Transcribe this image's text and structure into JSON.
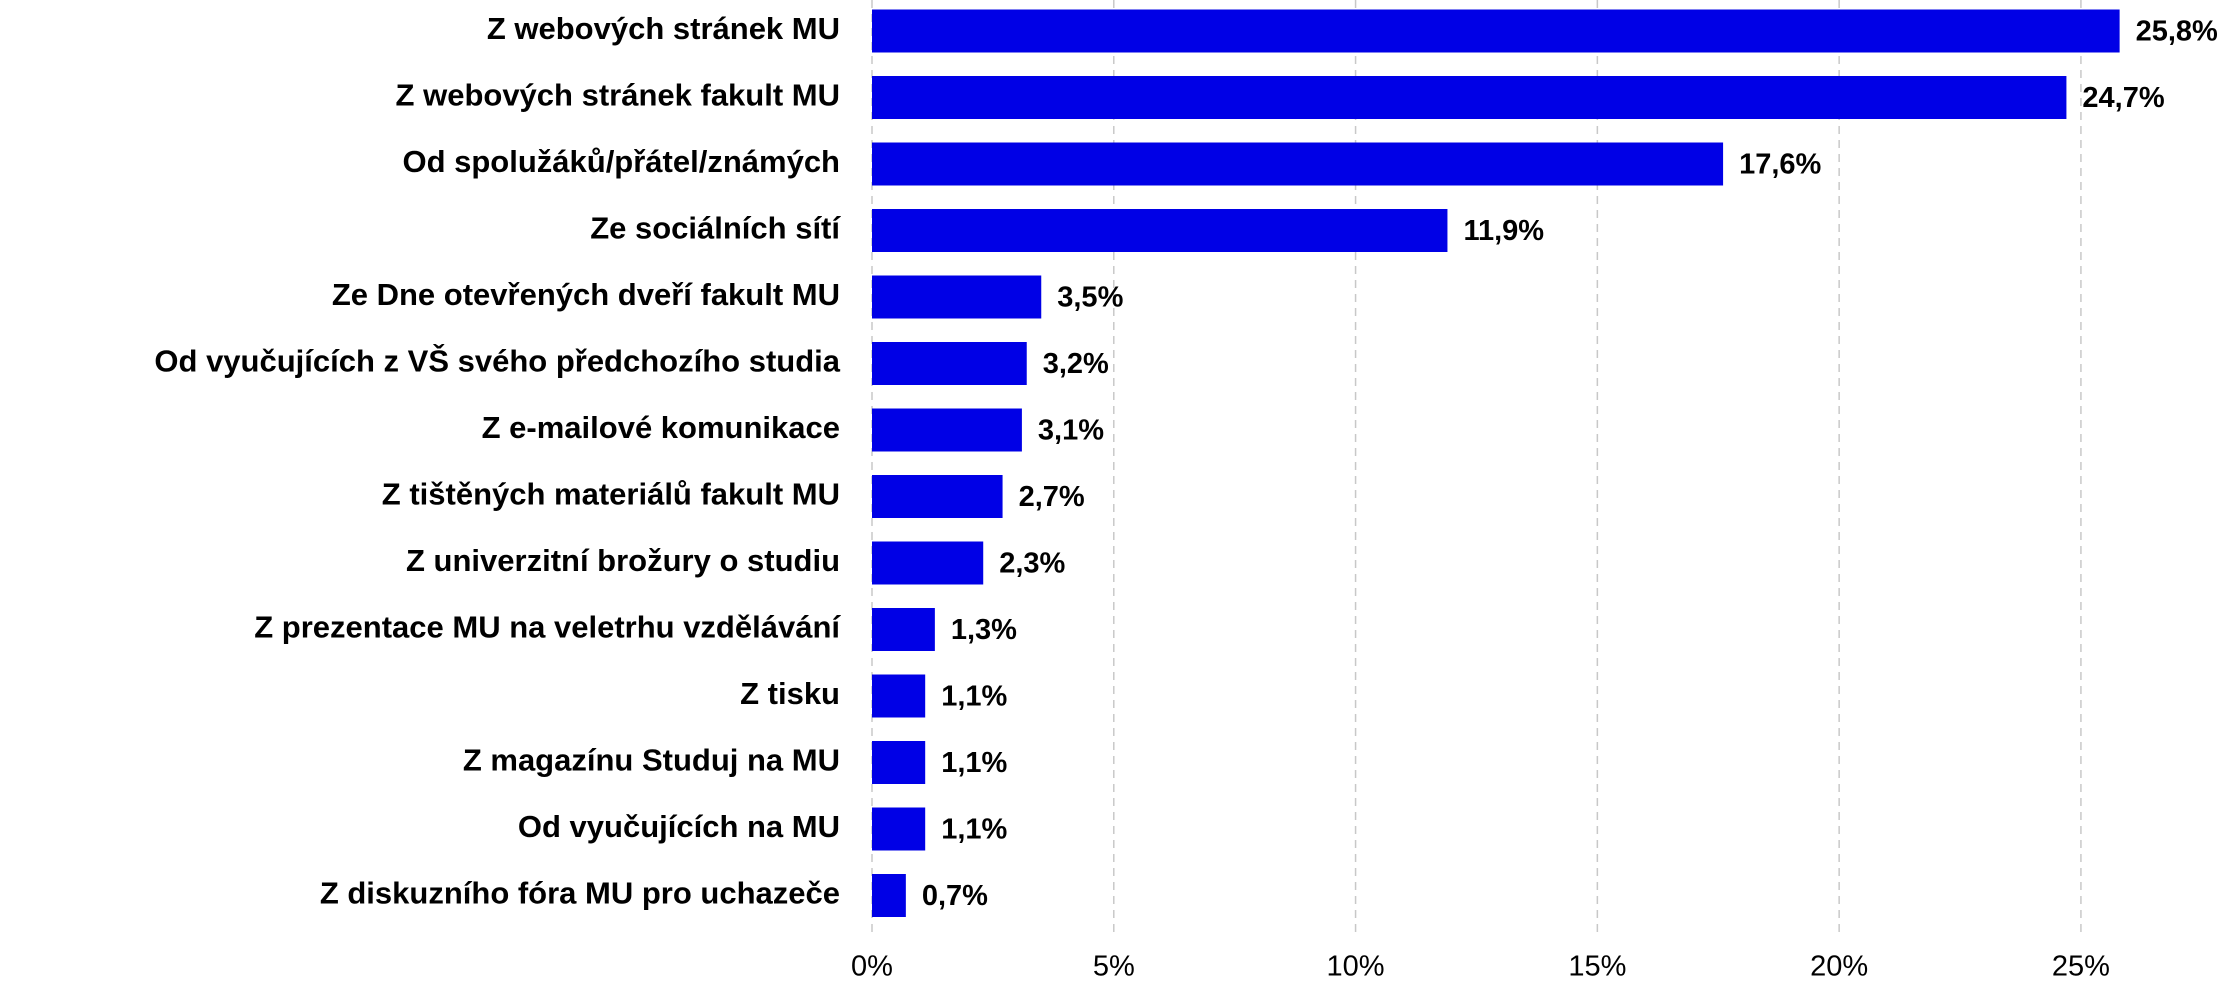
{
  "chart_data": {
    "type": "bar",
    "orientation": "horizontal",
    "categories": [
      "Z webových stránek MU",
      "Z webových stránek fakult MU",
      "Od spolužáků/přátel/známých",
      "Ze sociálních sítí",
      "Ze Dne otevřených dveří fakult MU",
      "Od vyučujících z VŠ svého předchozího studia",
      "Z e-mailové komunikace",
      "Z tištěných materiálů fakult MU",
      "Z univerzitní brožury o studiu",
      "Z prezentace MU na veletrhu vzdělávání",
      "Z tisku ",
      "Z magazínu Studuj na MU",
      "Od vyučujících na MU",
      "Z diskuzního fóra MU pro uchazeče"
    ],
    "values": [
      25.8,
      24.7,
      17.6,
      11.9,
      3.5,
      3.2,
      3.1,
      2.7,
      2.3,
      1.3,
      1.1,
      1.1,
      1.1,
      0.7
    ],
    "value_labels": [
      "25,8%",
      "24,7%",
      "17,6%",
      "11,9%",
      "3,5%",
      "3,2%",
      "3,1%",
      "2,7%",
      "2,3%",
      "1,3%",
      "1,1%",
      "1,1%",
      "1,1%",
      "0,7%"
    ],
    "color": "#0000e6",
    "xlim": [
      0,
      28
    ],
    "xticks": [
      {
        "value": 0,
        "label": "0%"
      },
      {
        "value": 5,
        "label": "5%"
      },
      {
        "value": 10,
        "label": "10%"
      },
      {
        "value": 15,
        "label": "15%"
      },
      {
        "value": 20,
        "label": "20%"
      },
      {
        "value": 25,
        "label": "25%"
      }
    ],
    "grid": true
  }
}
